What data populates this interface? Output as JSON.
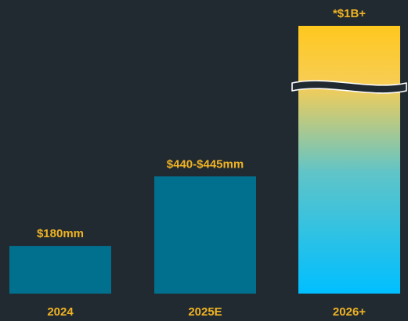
{
  "chart_data": {
    "type": "bar",
    "categories": [
      "2024",
      "2025E",
      "2026+"
    ],
    "values": [
      180,
      442.5,
      1000
    ],
    "value_labels": [
      "$180mm",
      "$440-$445mm",
      "*$1B+"
    ],
    "value_range_2025E": [
      440,
      445
    ],
    "unit": "$mm",
    "title": "",
    "xlabel": "",
    "ylabel": "",
    "grid": false,
    "axis_break_on_last_bar": true
  },
  "colors": {
    "background": "#222a31",
    "bar": "#00708e",
    "highlight_top": "#ffc81e",
    "highlight_bottom": "#00bfff",
    "label": "#f0b323"
  }
}
